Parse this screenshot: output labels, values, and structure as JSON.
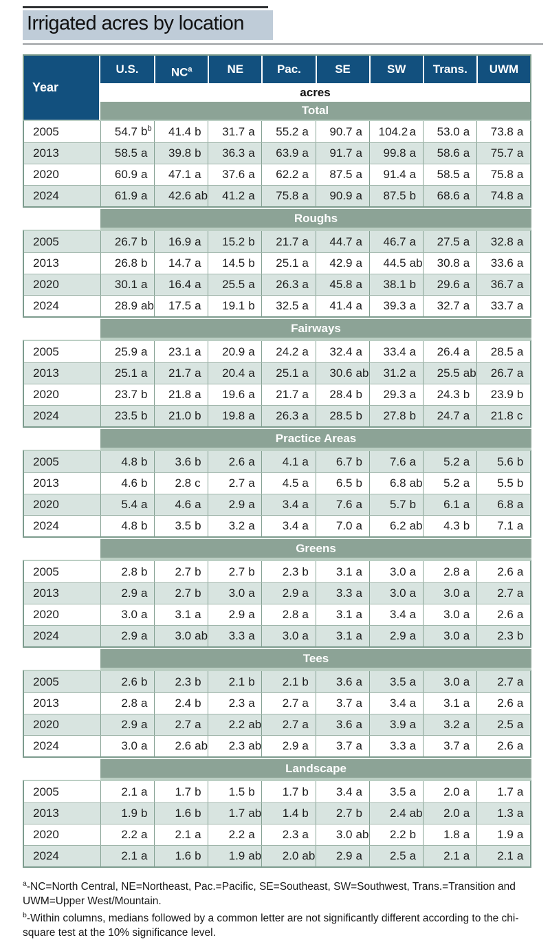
{
  "title": "Irrigated acres by location",
  "colors": {
    "header_blue": "#12507e",
    "section_band_green": "#8ca396",
    "row_tint": "#d8e4e0",
    "table_border_green": "#7c9b8d",
    "title_background": "#bfccd8"
  },
  "chart_data": {
    "type": "table",
    "title": "Irrigated acres by location",
    "unit_label": "acres",
    "row_axis_label": "Year",
    "columns": [
      "U.S.",
      "NC^a",
      "NE",
      "Pac.",
      "SE",
      "SW",
      "Trans.",
      "UWM"
    ],
    "sections": [
      {
        "name": "Total",
        "rows": [
          {
            "year": "2005",
            "values": [
              "54.7 b^b",
              "41.4 b",
              "31.7 a",
              "55.2 a",
              "90.7 a",
              "104.2 a",
              "53.0 a",
              "73.8 a"
            ]
          },
          {
            "year": "2013",
            "values": [
              "58.5 a",
              "39.8 b",
              "36.3 a",
              "63.9 a",
              "91.7 a",
              "99.8 a",
              "58.6 a",
              "75.7 a"
            ]
          },
          {
            "year": "2020",
            "values": [
              "60.9 a",
              "47.1 a",
              "37.6 a",
              "62.2 a",
              "87.5 a",
              "91.4 a",
              "58.5 a",
              "75.8 a"
            ]
          },
          {
            "year": "2024",
            "values": [
              "61.9 a",
              "42.6 ab",
              "41.2 a",
              "75.8 a",
              "90.9 a",
              "87.5 b",
              "68.6 a",
              "74.8 a"
            ]
          }
        ]
      },
      {
        "name": "Roughs",
        "rows": [
          {
            "year": "2005",
            "values": [
              "26.7 b",
              "16.9 a",
              "15.2 b",
              "21.7 a",
              "44.7 a",
              "46.7 a",
              "27.5 a",
              "32.8 a"
            ]
          },
          {
            "year": "2013",
            "values": [
              "26.8 b",
              "14.7 a",
              "14.5 b",
              "25.1 a",
              "42.9 a",
              "44.5 ab",
              "30.8 a",
              "33.6 a"
            ]
          },
          {
            "year": "2020",
            "values": [
              "30.1 a",
              "16.4 a",
              "25.5 a",
              "26.3 a",
              "45.8 a",
              "38.1 b",
              "29.6 a",
              "36.7 a"
            ]
          },
          {
            "year": "2024",
            "values": [
              "28.9 ab",
              "17.5 a",
              "19.1 b",
              "32.5 a",
              "41.4 a",
              "39.3 a",
              "32.7 a",
              "33.7 a"
            ]
          }
        ]
      },
      {
        "name": "Fairways",
        "rows": [
          {
            "year": "2005",
            "values": [
              "25.9 a",
              "23.1 a",
              "20.9 a",
              "24.2 a",
              "32.4 a",
              "33.4 a",
              "26.4 a",
              "28.5 a"
            ]
          },
          {
            "year": "2013",
            "values": [
              "25.1 a",
              "21.7 a",
              "20.4 a",
              "25.1 a",
              "30.6 ab",
              "31.2 a",
              "25.5 ab",
              "26.7 a"
            ]
          },
          {
            "year": "2020",
            "values": [
              "23.7 b",
              "21.8 a",
              "19.6 a",
              "21.7 a",
              "28.4 b",
              "29.3 a",
              "24.3 b",
              "23.9 b"
            ]
          },
          {
            "year": "2024",
            "values": [
              "23.5 b",
              "21.0 b",
              "19.8 a",
              "26.3 a",
              "28.5 b",
              "27.8 b",
              "24.7 a",
              "21.8 c"
            ]
          }
        ]
      },
      {
        "name": "Practice Areas",
        "rows": [
          {
            "year": "2005",
            "values": [
              "4.8 b",
              "3.6 b",
              "2.6 a",
              "4.1 a",
              "6.7 b",
              "7.6 a",
              "5.2 a",
              "5.6 b"
            ]
          },
          {
            "year": "2013",
            "values": [
              "4.6 b",
              "2.8 c",
              "2.7 a",
              "4.5 a",
              "6.5 b",
              "6.8 ab",
              "5.2 a",
              "5.5 b"
            ]
          },
          {
            "year": "2020",
            "values": [
              "5.4 a",
              "4.6 a",
              "2.9 a",
              "3.4 a",
              "7.6 a",
              "5.7 b",
              "6.1 a",
              "6.8 a"
            ]
          },
          {
            "year": "2024",
            "values": [
              "4.8 b",
              "3.5 b",
              "3.2 a",
              "3.4 a",
              "7.0 a",
              "6.2 ab",
              "4.3 b",
              "7.1 a"
            ]
          }
        ]
      },
      {
        "name": "Greens",
        "rows": [
          {
            "year": "2005",
            "values": [
              "2.8 b",
              "2.7 b",
              "2.7 b",
              "2.3 b",
              "3.1 a",
              "3.0 a",
              "2.8 a",
              "2.6 a"
            ]
          },
          {
            "year": "2013",
            "values": [
              "2.9 a",
              "2.7 b",
              "3.0 a",
              "2.9 a",
              "3.3 a",
              "3.0 a",
              "3.0 a",
              "2.7 a"
            ]
          },
          {
            "year": "2020",
            "values": [
              "3.0 a",
              "3.1 a",
              "2.9 a",
              "2.8 a",
              "3.1 a",
              "3.4 a",
              "3.0 a",
              "2.6 a"
            ]
          },
          {
            "year": "2024",
            "values": [
              "2.9 a",
              "3.0 ab",
              "3.3 a",
              "3.0 a",
              "3.1 a",
              "2.9 a",
              "3.0 a",
              "2.3 b"
            ]
          }
        ]
      },
      {
        "name": "Tees",
        "rows": [
          {
            "year": "2005",
            "values": [
              "2.6 b",
              "2.3 b",
              "2.1 b",
              "2.1 b",
              "3.6 a",
              "3.5 a",
              "3.0 a",
              "2.7 a"
            ]
          },
          {
            "year": "2013",
            "values": [
              "2.8 a",
              "2.4 b",
              "2.3 a",
              "2.7 a",
              "3.7 a",
              "3.4 a",
              "3.1 a",
              "2.6 a"
            ]
          },
          {
            "year": "2020",
            "values": [
              "2.9 a",
              "2.7 a",
              "2.2 ab",
              "2.7 a",
              "3.6 a",
              "3.9 a",
              "3.2 a",
              "2.5 a"
            ]
          },
          {
            "year": "2024",
            "values": [
              "3.0 a",
              "2.6 ab",
              "2.3 ab",
              "2.9 a",
              "3.7 a",
              "3.3 a",
              "3.7 a",
              "2.6 a"
            ]
          }
        ]
      },
      {
        "name": "Landscape",
        "rows": [
          {
            "year": "2005",
            "values": [
              "2.1 a",
              "1.7 b",
              "1.5 b",
              "1.7 b",
              "3.4 a",
              "3.5 a",
              "2.0 a",
              "1.7 a"
            ]
          },
          {
            "year": "2013",
            "values": [
              "1.9 b",
              "1.6 b",
              "1.7 ab",
              "1.4 b",
              "2.7 b",
              "2.4 ab",
              "2.0 a",
              "1.3 a"
            ]
          },
          {
            "year": "2020",
            "values": [
              "2.2 a",
              "2.1 a",
              "2.2 a",
              "2.3 a",
              "3.0 ab",
              "2.2 b",
              "1.8 a",
              "1.9 a"
            ]
          },
          {
            "year": "2024",
            "values": [
              "2.1 a",
              "1.6 b",
              "1.9 ab",
              "2.0 ab",
              "2.9 a",
              "2.5 a",
              "2.1 a",
              "2.1 a"
            ]
          }
        ]
      }
    ]
  },
  "footnotes": [
    {
      "marker": "a",
      "text": "-NC=North Central, NE=Northeast, Pac.=Pacific, SE=Southeast, SW=Southwest, Trans.=Transition and UWM=Upper West/Mountain."
    },
    {
      "marker": "b",
      "text": "-Within columns, medians followed by a common letter are not significantly different according to the chi-square test at the 10% significance level."
    }
  ]
}
